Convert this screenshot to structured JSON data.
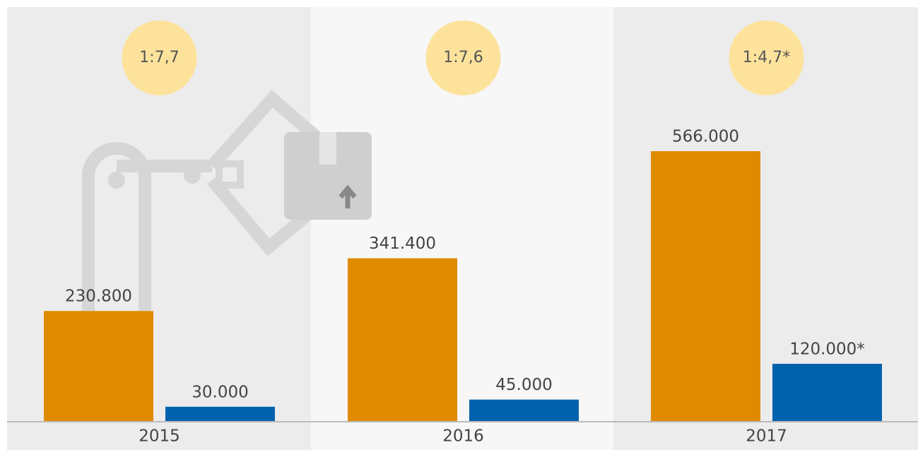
{
  "chart_data": {
    "type": "bar",
    "categories": [
      "2015",
      "2016",
      "2017"
    ],
    "annotations": [
      "1:7,7",
      "1:7,6",
      "1:4,7*"
    ],
    "series": [
      {
        "color": "#e08a00",
        "values": [
          230800,
          341400,
          566000
        ],
        "value_labels": [
          "230.800",
          "341.400",
          "566.000"
        ]
      },
      {
        "color": "#0062ad",
        "values": [
          30000,
          45000,
          120000
        ],
        "value_labels": [
          "30.000",
          "45.000",
          "120.000*"
        ]
      }
    ]
  }
}
